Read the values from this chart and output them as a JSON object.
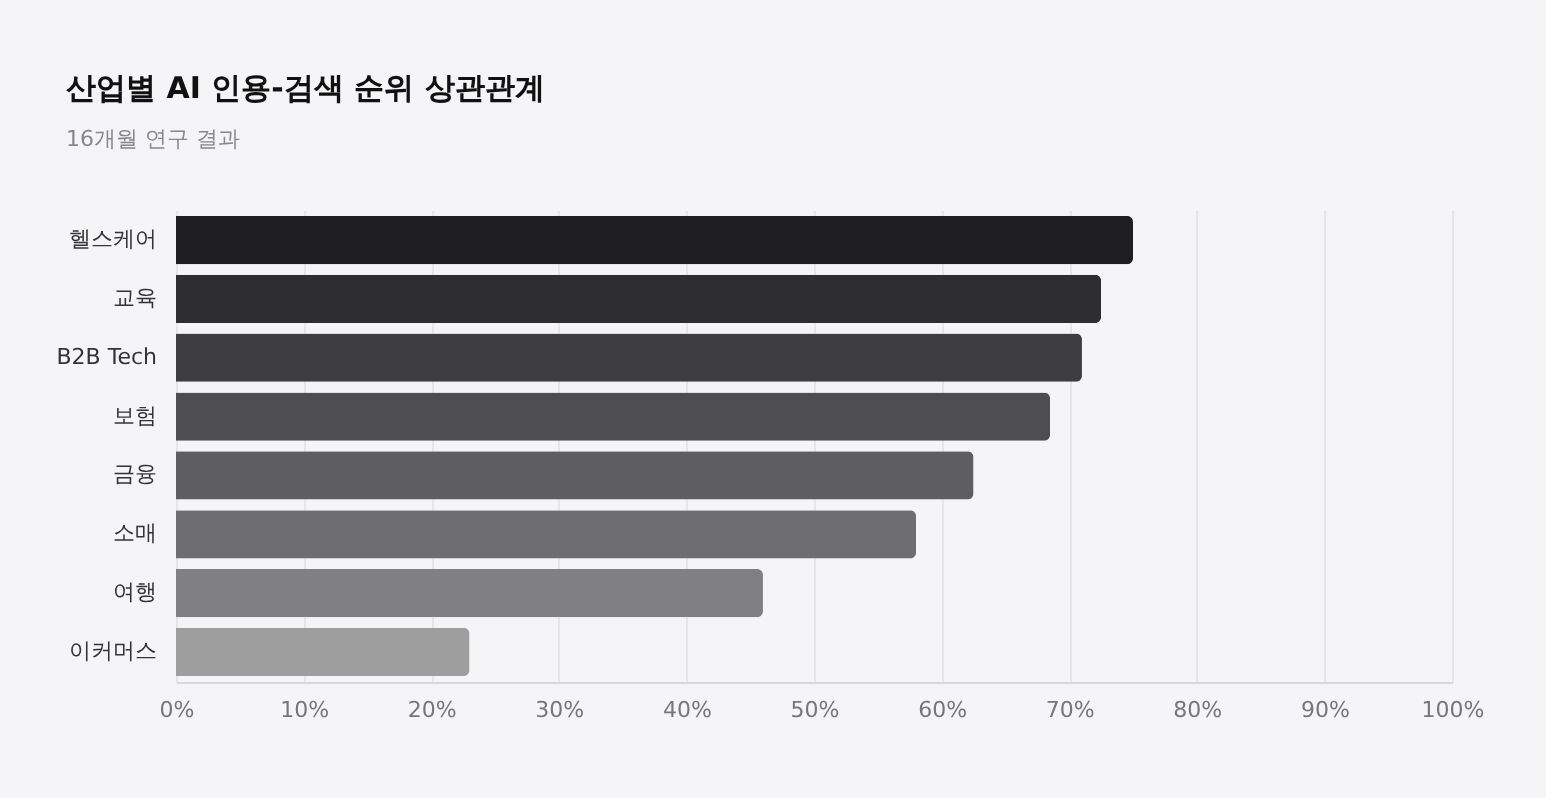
{
  "chart_data": {
    "type": "bar",
    "orientation": "horizontal",
    "title": "산업별 AI 인용-검색 순위 상관관계",
    "subtitle": "16개월 연구 결과",
    "categories": [
      "헬스케어",
      "교육",
      "B2B Tech",
      "보험",
      "금융",
      "소매",
      "여행",
      "이커머스"
    ],
    "values": [
      75,
      72.5,
      71,
      68.5,
      62.5,
      58,
      46,
      23
    ],
    "colors": [
      "#1e1e20",
      "#2e2e30",
      "#3e3e40",
      "#4e4e50",
      "#5e5e60",
      "#6e6e70",
      "#808082",
      "#9e9e9f"
    ],
    "xlim": [
      0,
      100
    ],
    "xticks": [
      {
        "value": 0,
        "label": "0%"
      },
      {
        "value": 10,
        "label": "10%"
      },
      {
        "value": 20,
        "label": "20%"
      },
      {
        "value": 30,
        "label": "30%"
      },
      {
        "value": 40,
        "label": "40%"
      },
      {
        "value": 50,
        "label": "50%"
      },
      {
        "value": 60,
        "label": "60%"
      },
      {
        "value": 70,
        "label": "70%"
      },
      {
        "value": 80,
        "label": "80%"
      },
      {
        "value": 90,
        "label": "90%"
      },
      {
        "value": 100,
        "label": "100%"
      }
    ],
    "grid": "x"
  }
}
